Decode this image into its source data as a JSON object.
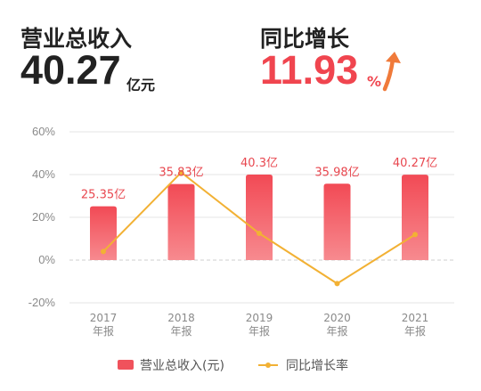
{
  "kpi": {
    "revenue_label": "营业总收入",
    "revenue_value": "40.27",
    "revenue_unit": "亿元",
    "growth_label": "同比增长",
    "growth_value": "11.93",
    "growth_unit": "%",
    "growth_arrow_icon": "up-arrow-icon",
    "dark_color": "#222222",
    "accent_color": "#f0454f",
    "arrow_color": "#f07a3a"
  },
  "chart_data": {
    "type": "bar+line",
    "categories": [
      [
        "2017",
        "年报"
      ],
      [
        "2018",
        "年报"
      ],
      [
        "2019",
        "年报"
      ],
      [
        "2020",
        "年报"
      ],
      [
        "2021",
        "年报"
      ]
    ],
    "bars": {
      "name": "营业总收入(元)",
      "values": [
        25.35,
        35.83,
        40.3,
        35.98,
        40.27
      ],
      "labels": [
        "25.35亿",
        "35.83亿",
        "40.3亿",
        "35.98亿",
        "40.27亿"
      ],
      "color": "#f0525c",
      "max": 40.3
    },
    "line": {
      "name": "同比增长率",
      "values": [
        4,
        41,
        12.5,
        -11,
        11.93
      ],
      "color": "#f2b134"
    },
    "y_axis": {
      "ticks": [
        "60%",
        "40%",
        "20%",
        "0%",
        "-20%"
      ],
      "tick_values": [
        60,
        40,
        20,
        0,
        -20
      ],
      "range": [
        -20,
        60
      ]
    },
    "grid": true
  }
}
